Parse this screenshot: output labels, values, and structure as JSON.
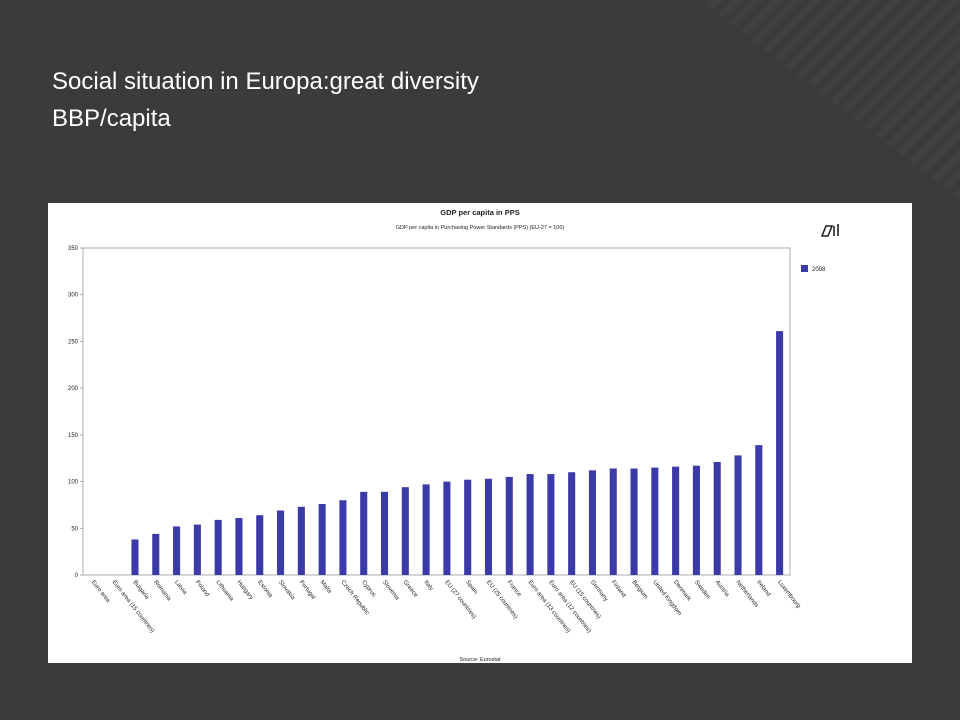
{
  "slide_title": [
    "Social situation in Europa:great diversity",
    "BBP/capita"
  ],
  "chart_data": {
    "type": "bar",
    "title": "GDP per capita in PPS",
    "subtitle": "GDP per capita in Purchasing Power Standards (PPS) (EU-27 = 100)",
    "source": "Source: Eurostat",
    "categories": [
      "Euro area",
      "Euro area (15 countries)",
      "Bulgaria",
      "Romania",
      "Latvia",
      "Poland",
      "Lithuania",
      "Hungary",
      "Estonia",
      "Slovakia",
      "Portugal",
      "Malta",
      "Czech Republic",
      "Cyprus",
      "Slovenia",
      "Greece",
      "Italy",
      "EU (27 countries)",
      "Spain",
      "EU (25 countries)",
      "France",
      "Euro area (13 countries)",
      "Euro area (12 countries)",
      "EU (15 countries)",
      "Germany",
      "Finland",
      "Belgium",
      "United Kingdom",
      "Denmark",
      "Sweden",
      "Austria",
      "Netherlands",
      "Ireland",
      "Luxembourg"
    ],
    "series": [
      {
        "name": "2008",
        "color": "#3a3aa8",
        "values": [
          null,
          null,
          38,
          44,
          52,
          54,
          59,
          61,
          64,
          69,
          73,
          76,
          80,
          89,
          89,
          94,
          97,
          100,
          102,
          103,
          105,
          108,
          108,
          110,
          112,
          114,
          114,
          115,
          116,
          117,
          121,
          128,
          139,
          261
        ]
      }
    ],
    "ylim": [
      0,
      350
    ],
    "yticks": [
      0,
      50,
      100,
      150,
      200,
      250,
      300,
      350
    ],
    "grid": false,
    "legend": "right"
  }
}
